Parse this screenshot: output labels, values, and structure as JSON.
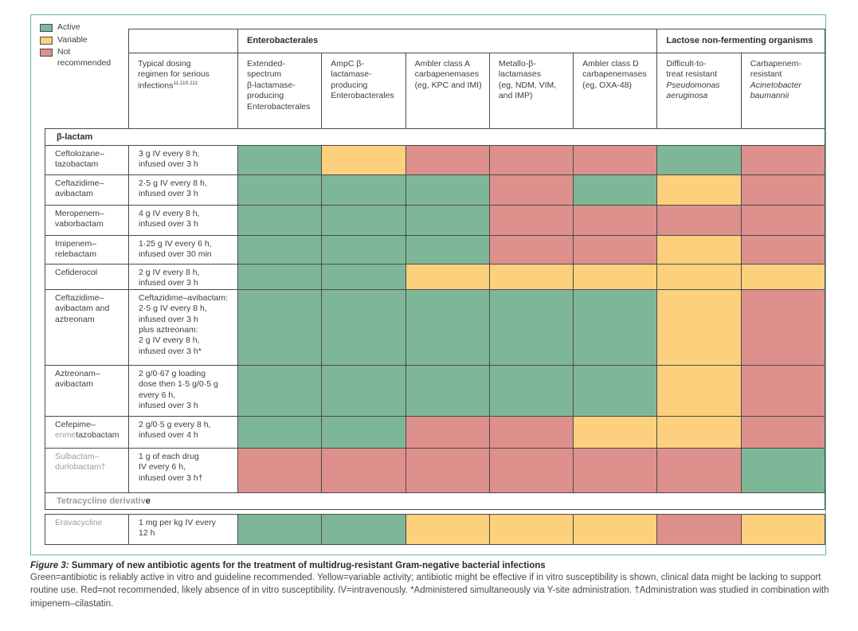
{
  "colors": {
    "active": "#7eb797",
    "variable": "#fcd07d",
    "not_recommended": "#dd908c",
    "panel_border": "#69b2aa",
    "grid_line": "#4b4b4b",
    "text": "#3d3d3d",
    "muted_text": "#9c9c9c"
  },
  "legend": [
    {
      "status": "active",
      "label": "Active"
    },
    {
      "status": "variable",
      "label": "Variable"
    },
    {
      "status": "not_recommended",
      "label": "Not recommended"
    }
  ],
  "header": {
    "dosing_column": {
      "title": "Typical dosing\nregimen for serious\ninfections",
      "refs": "11,110,111"
    },
    "groups": [
      {
        "label": "Enterobacterales",
        "span": 5
      },
      {
        "label": "Lactose non-fermenting organisms",
        "span": 2
      }
    ],
    "organism_columns": [
      {
        "label": "Extended-\nspectrum\nβ-lactamase-\nproducing\nEnterobacterales"
      },
      {
        "label": "AmpC β-\nlactamase-\nproducing\nEnterobacterales"
      },
      {
        "label": "Ambler class A\ncarbapenemases\n(eg, KPC and IMI)"
      },
      {
        "label": "Metallo-β-\nlactamases\n(eg, NDM, VIM,\nand IMP)"
      },
      {
        "label": "Ambler class D\ncarbapenemases\n(eg, OXA-48)"
      },
      {
        "label": "Difficult-to-\ntreat resistant",
        "species": "Pseudomonas\naeruginosa"
      },
      {
        "label": "Carbapenem-\nresistant",
        "species": "Acinetobacter\nbaumannii"
      }
    ]
  },
  "sections": [
    {
      "title_segments": [
        {
          "text": "β-lactam"
        }
      ],
      "rows": [
        {
          "name_segments": [
            {
              "text": "Ceftolozane–\ntazobactam"
            }
          ],
          "dose": "3 g IV every 8 h,\ninfused over 3 h",
          "cells": [
            "active",
            "variable",
            "not_recommended",
            "not_recommended",
            "not_recommended",
            "active",
            "not_recommended"
          ]
        },
        {
          "name_segments": [
            {
              "text": "Ceftazidime–\navibactam"
            }
          ],
          "dose": "2·5 g IV every 8 h,\ninfused over 3 h",
          "cells": [
            "active",
            "active",
            "active",
            "not_recommended",
            "active",
            "variable",
            "not_recommended"
          ]
        },
        {
          "name_segments": [
            {
              "text": "Meropenem–\nvaborbactam"
            }
          ],
          "dose": "4 g IV every 8 h,\ninfused over 3 h",
          "cells": [
            "active",
            "active",
            "active",
            "not_recommended",
            "not_recommended",
            "not_recommended",
            "not_recommended"
          ]
        },
        {
          "name_segments": [
            {
              "text": "Imipenem–\nrelebactam"
            }
          ],
          "dose": "1·25 g IV every 6 h,\ninfused over 30 min",
          "cells": [
            "active",
            "active",
            "active",
            "not_recommended",
            "not_recommended",
            "variable",
            "not_recommended"
          ]
        },
        {
          "name_segments": [
            {
              "text": "Cefiderocol"
            }
          ],
          "dose": "2 g IV every 8 h,\ninfused over 3 h",
          "cells": [
            "active",
            "active",
            "variable",
            "variable",
            "variable",
            "variable",
            "variable"
          ]
        },
        {
          "name_segments": [
            {
              "text": "Ceftazidime–\navibactam and\naztreonam"
            }
          ],
          "dose": "Ceftazidime–avibactam:\n2·5 g IV every 8 h,\ninfused over 3 h\nplus aztreonam:\n2 g IV every 8 h,\ninfused over 3 h*",
          "cells": [
            "active",
            "active",
            "active",
            "active",
            "active",
            "variable",
            "not_recommended"
          ]
        },
        {
          "name_segments": [
            {
              "text": "Aztreonam–\navibactam"
            }
          ],
          "dose": "2 g/0·67 g loading\ndose then 1·5 g/0·5 g\nevery 6 h,\ninfused over 3 h",
          "cells": [
            "active",
            "active",
            "active",
            "active",
            "active",
            "variable",
            "not_recommended"
          ]
        },
        {
          "name_segments": [
            {
              "text": "Cefepime–\n"
            },
            {
              "text": "enme",
              "gray": true
            },
            {
              "text": "tazobactam"
            }
          ],
          "dose": "2 g/0·5 g every 8 h,\ninfused over 4 h",
          "cells": [
            "active",
            "active",
            "not_recommended",
            "not_recommended",
            "variable",
            "variable",
            "not_recommended"
          ]
        },
        {
          "name_segments": [
            {
              "text": "Sulbactam–\ndurlobactam†",
              "gray": true
            }
          ],
          "dose": "1 g of each drug\nIV every 6 h,\ninfused over 3 h†",
          "cells": [
            "not_recommended",
            "not_recommended",
            "not_recommended",
            "not_recommended",
            "not_recommended",
            "not_recommended",
            "active"
          ]
        }
      ]
    },
    {
      "title_segments": [
        {
          "text": "Tetracycline derivativ",
          "gray": true
        },
        {
          "text": "e"
        }
      ],
      "rows": [
        {
          "name_segments": [
            {
              "text": "Eravacycline",
              "gray": true
            }
          ],
          "dose": "1 mg per kg IV every\n12 h",
          "cells": [
            "active",
            "active",
            "variable",
            "variable",
            "variable",
            "not_recommended",
            "variable"
          ]
        }
      ]
    }
  ],
  "caption": {
    "label": "Figure 3:",
    "title": "Summary of new antibiotic agents for the treatment of multidrug-resistant Gram-negative bacterial infections",
    "notes": "Green=antibiotic is reliably active in vitro and guideline recommended. Yellow=variable activity; antibiotic might be effective if in vitro susceptibility is shown, clinical data might be lacking to support routine use. Red=not recommended, likely absence of in vitro susceptibility. IV=intravenously. *Administered simultaneously via Y-site administration. †Administration was studied in combination with imipenem–cilastatin."
  }
}
